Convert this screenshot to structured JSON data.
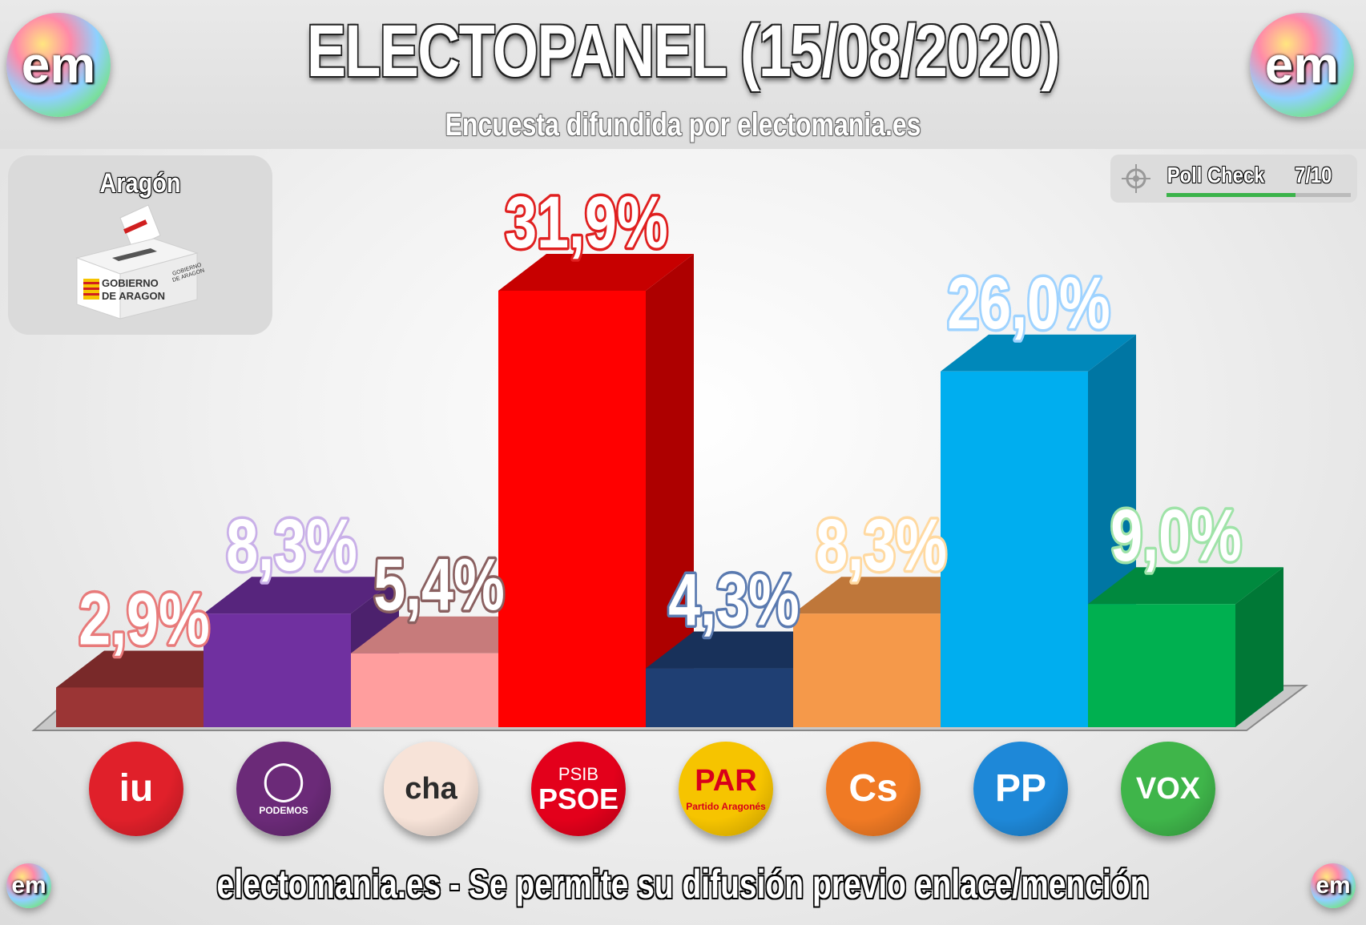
{
  "header": {
    "title": "ELECTOPANEL (15/08/2020)",
    "subtitle": "Encuesta difundida por electomania.es",
    "logo_text": "em"
  },
  "region": {
    "name": "Aragón",
    "box_line1": "GOBIERNO",
    "box_line2": "DE ARAGON",
    "box_side1": "GOBIERNO",
    "box_side2": "DE ARAGON"
  },
  "poll_check": {
    "label": "Poll Check",
    "score": "7/10",
    "score_fraction": 0.7
  },
  "footer": {
    "text": "electomania.es - Se permite su difusión previo enlace/mención"
  },
  "chart_data": {
    "type": "bar",
    "categories": [
      "IU",
      "Podemos",
      "CHA",
      "PSOE",
      "PAR",
      "Cs",
      "PP",
      "VOX"
    ],
    "values": [
      2.9,
      8.3,
      5.4,
      31.9,
      4.3,
      8.3,
      26.0,
      9.0
    ],
    "value_labels": [
      "2,9%",
      "8,3%",
      "5,4%",
      "31,9%",
      "4,3%",
      "8,3%",
      "26,0%",
      "9,0%"
    ],
    "colors": [
      "#9b3535",
      "#7030a0",
      "#ff9e9e",
      "#ff0000",
      "#1f3f73",
      "#f5994a",
      "#00aeef",
      "#00b050"
    ],
    "label_glow": [
      "#e87a7a",
      "#c9b0e8",
      "#8a6060",
      "#e02020",
      "#5a7ab0",
      "#ffd9a0",
      "#9fd3ff",
      "#9fe3a8"
    ],
    "ylim": [
      0,
      35
    ]
  },
  "party_logos": [
    {
      "name": "iu",
      "text": "iu",
      "sub": "",
      "bg": "#e0202a",
      "fg": "#ffffff"
    },
    {
      "name": "podemos",
      "text": "◯",
      "sub": "PODEMOS",
      "bg": "#6b2a78",
      "fg": "#ffffff"
    },
    {
      "name": "cha",
      "text": "cha",
      "sub": "",
      "bg": "#f7e3d8",
      "fg": "#2b2b2b"
    },
    {
      "name": "psoe",
      "text": "PSOE",
      "sub": "PSIB",
      "bg": "#e3001b",
      "fg": "#ffffff"
    },
    {
      "name": "par",
      "text": "PAR",
      "sub": "Partido Aragonés",
      "bg": "#f6c400",
      "fg": "#d8001a"
    },
    {
      "name": "cs",
      "text": "Cs",
      "sub": "",
      "bg": "#f07a24",
      "fg": "#ffffff"
    },
    {
      "name": "pp",
      "text": "PP",
      "sub": "",
      "bg": "#1e88d8",
      "fg": "#ffffff"
    },
    {
      "name": "vox",
      "text": "VOX",
      "sub": "",
      "bg": "#3fb54a",
      "fg": "#ffffff"
    }
  ]
}
